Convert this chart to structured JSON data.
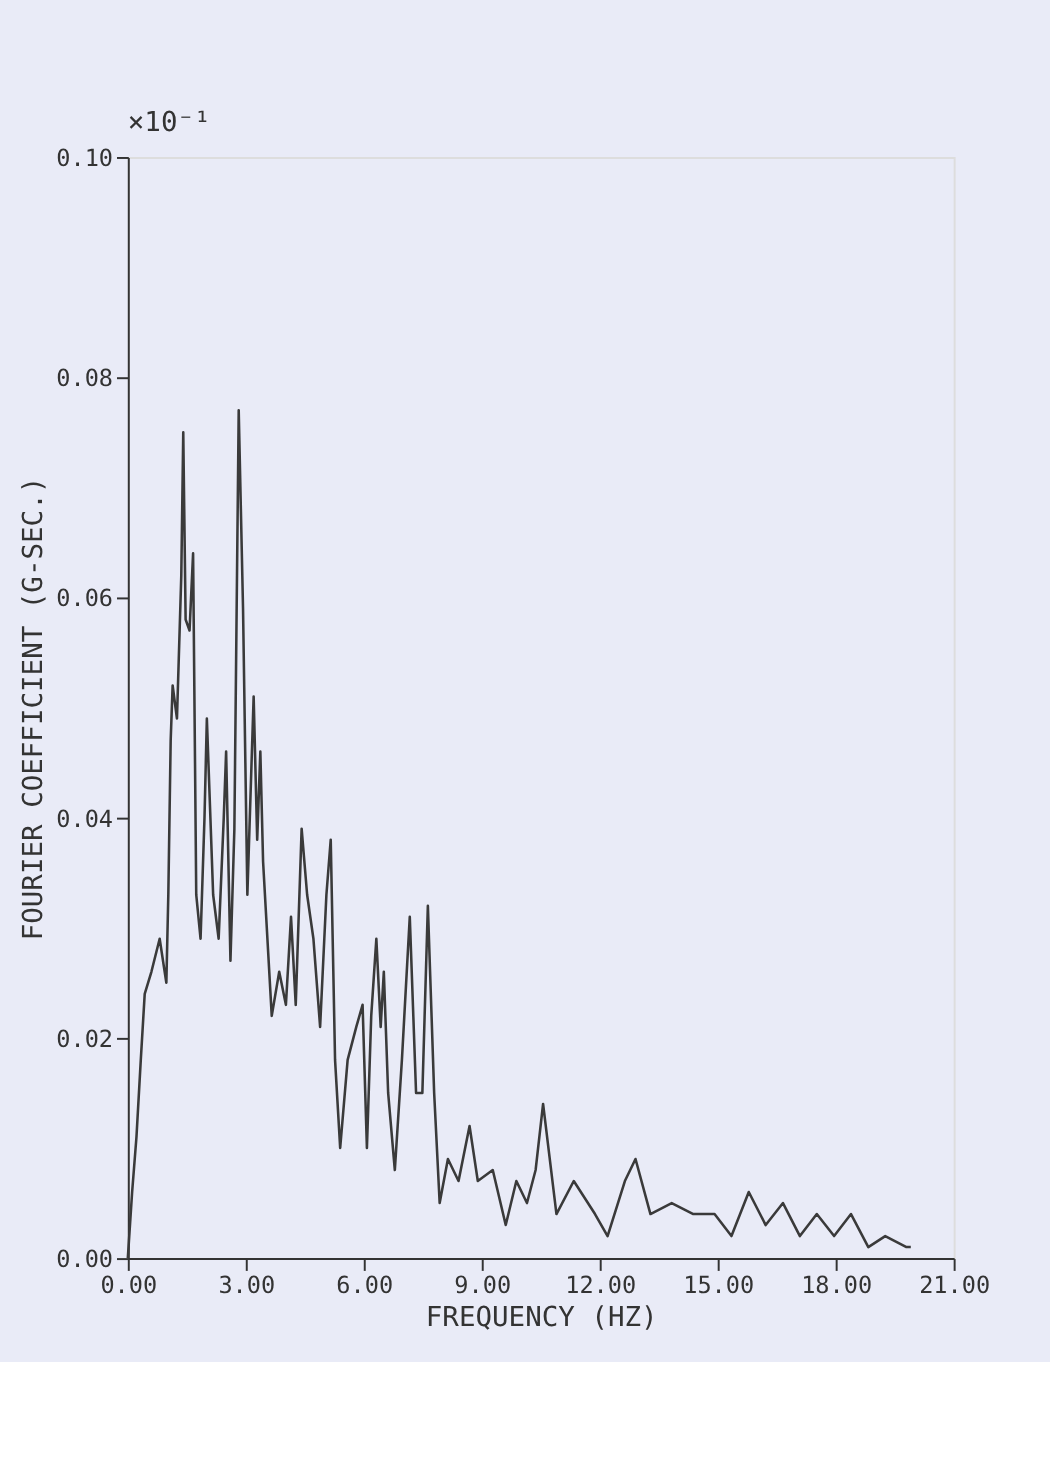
{
  "chart_data": {
    "type": "line",
    "xlabel": "FREQUENCY (HZ)",
    "ylabel": "FOURIER COEFFICIENT (G-SEC.)",
    "annotations": [
      "×10⁻¹"
    ],
    "xlim": [
      0,
      21
    ],
    "xticks": [
      {
        "value": 0,
        "label": "0.00"
      },
      {
        "value": 3,
        "label": "3.00"
      },
      {
        "value": 6,
        "label": "6.00"
      },
      {
        "value": 9,
        "label": "9.00"
      },
      {
        "value": 12,
        "label": "12.00"
      },
      {
        "value": 15,
        "label": "15.00"
      },
      {
        "value": 18,
        "label": "18.00"
      },
      {
        "value": 21,
        "label": "21.00"
      }
    ],
    "ylim": [
      0,
      0.1
    ],
    "yticks": [
      {
        "value": 0,
        "label": "0.00"
      },
      {
        "value": 0.02,
        "label": "0.02"
      },
      {
        "value": 0.04,
        "label": "0.04"
      },
      {
        "value": 0.06,
        "label": "0.06"
      },
      {
        "value": 0.08,
        "label": "0.08"
      },
      {
        "value": 0.1,
        "label": "0.10"
      }
    ],
    "grid": false,
    "legend": false,
    "series": [
      {
        "color": "#3a3a3a",
        "x": [
          0,
          0.11,
          0.22,
          0.33,
          0.43,
          0.6,
          0.81,
          0.98,
          1.03,
          1.09,
          1.14,
          1.25,
          1.36,
          1.41,
          1.47,
          1.57,
          1.66,
          1.74,
          1.85,
          1.95,
          2.01,
          2.17,
          2.31,
          2.44,
          2.5,
          2.61,
          2.71,
          2.82,
          2.93,
          3.04,
          3.2,
          3.29,
          3.37,
          3.44,
          3.66,
          3.85,
          4.02,
          4.15,
          4.27,
          4.42,
          4.56,
          4.72,
          4.89,
          5.05,
          5.16,
          5.27,
          5.4,
          5.59,
          5.81,
          5.97,
          6.08,
          6.19,
          6.32,
          6.43,
          6.51,
          6.62,
          6.79,
          6.97,
          7.17,
          7.33,
          7.49,
          7.63,
          7.79,
          7.93,
          8.14,
          8.41,
          8.69,
          8.9,
          9.28,
          9.61,
          9.88,
          10.15,
          10.37,
          10.56,
          10.9,
          11.34,
          11.88,
          12.2,
          12.64,
          12.91,
          13.29,
          13.83,
          14.38,
          14.92,
          15.35,
          15.79,
          16.22,
          16.66,
          17.09,
          17.52,
          17.96,
          18.39,
          18.83,
          19.26,
          19.8,
          19.91
        ],
        "values": [
          0,
          0.006,
          0.011,
          0.018,
          0.024,
          0.026,
          0.029,
          0.025,
          0.033,
          0.047,
          0.052,
          0.049,
          0.062,
          0.075,
          0.058,
          0.057,
          0.064,
          0.033,
          0.029,
          0.04,
          0.049,
          0.033,
          0.029,
          0.04,
          0.046,
          0.027,
          0.039,
          0.077,
          0.059,
          0.033,
          0.051,
          0.038,
          0.046,
          0.036,
          0.022,
          0.026,
          0.023,
          0.031,
          0.023,
          0.039,
          0.033,
          0.029,
          0.021,
          0.033,
          0.038,
          0.018,
          0.01,
          0.018,
          0.021,
          0.023,
          0.01,
          0.022,
          0.029,
          0.021,
          0.026,
          0.015,
          0.008,
          0.018,
          0.031,
          0.015,
          0.015,
          0.032,
          0.015,
          0.005,
          0.009,
          0.007,
          0.012,
          0.007,
          0.008,
          0.003,
          0.007,
          0.005,
          0.008,
          0.014,
          0.004,
          0.007,
          0.004,
          0.002,
          0.007,
          0.009,
          0.004,
          0.005,
          0.004,
          0.004,
          0.002,
          0.006,
          0.003,
          0.005,
          0.002,
          0.004,
          0.002,
          0.004,
          0.001,
          0.002,
          0.001,
          0.001
        ]
      }
    ]
  }
}
